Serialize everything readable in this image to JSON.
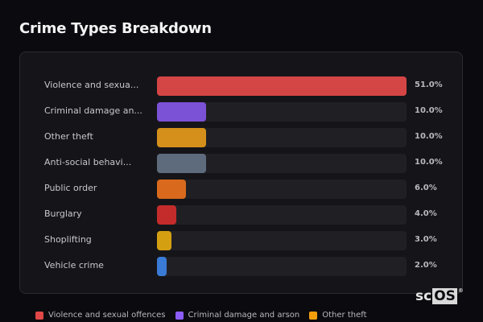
{
  "title": "Crime Types Breakdown",
  "chart_data": {
    "type": "bar",
    "orientation": "horizontal",
    "title": "Crime Types Breakdown",
    "categories": [
      "Violence and sexual offences",
      "Criminal damage and arson",
      "Other theft",
      "Anti-social behaviour",
      "Public order",
      "Burglary",
      "Shoplifting",
      "Vehicle crime"
    ],
    "display_labels": [
      "Violence and sexua...",
      "Criminal damage an...",
      "Other theft",
      "Anti-social behavi...",
      "Public order",
      "Burglary",
      "Shoplifting",
      "Vehicle crime"
    ],
    "values": [
      51.0,
      10.0,
      10.0,
      10.0,
      6.0,
      4.0,
      3.0,
      2.0
    ],
    "value_labels": [
      "51.0%",
      "10.0%",
      "10.0%",
      "10.0%",
      "6.0%",
      "4.0%",
      "3.0%",
      "2.0%"
    ],
    "colors": [
      "#d44545",
      "#7b52d6",
      "#d4901a",
      "#5e6b7c",
      "#d9691c",
      "#c42b2b",
      "#d4a012",
      "#3a7bd5"
    ],
    "xlim": [
      0,
      51
    ],
    "grid": false,
    "legend_position": "bottom",
    "legend": [
      {
        "label": "Violence and sexual offences",
        "color": "#e04848"
      },
      {
        "label": "Criminal damage and arson",
        "color": "#8b5cf6"
      },
      {
        "label": "Other theft",
        "color": "#f59e0b"
      }
    ]
  },
  "logo": {
    "prefix": "sc",
    "boxed": "OS",
    "mark": "®"
  }
}
